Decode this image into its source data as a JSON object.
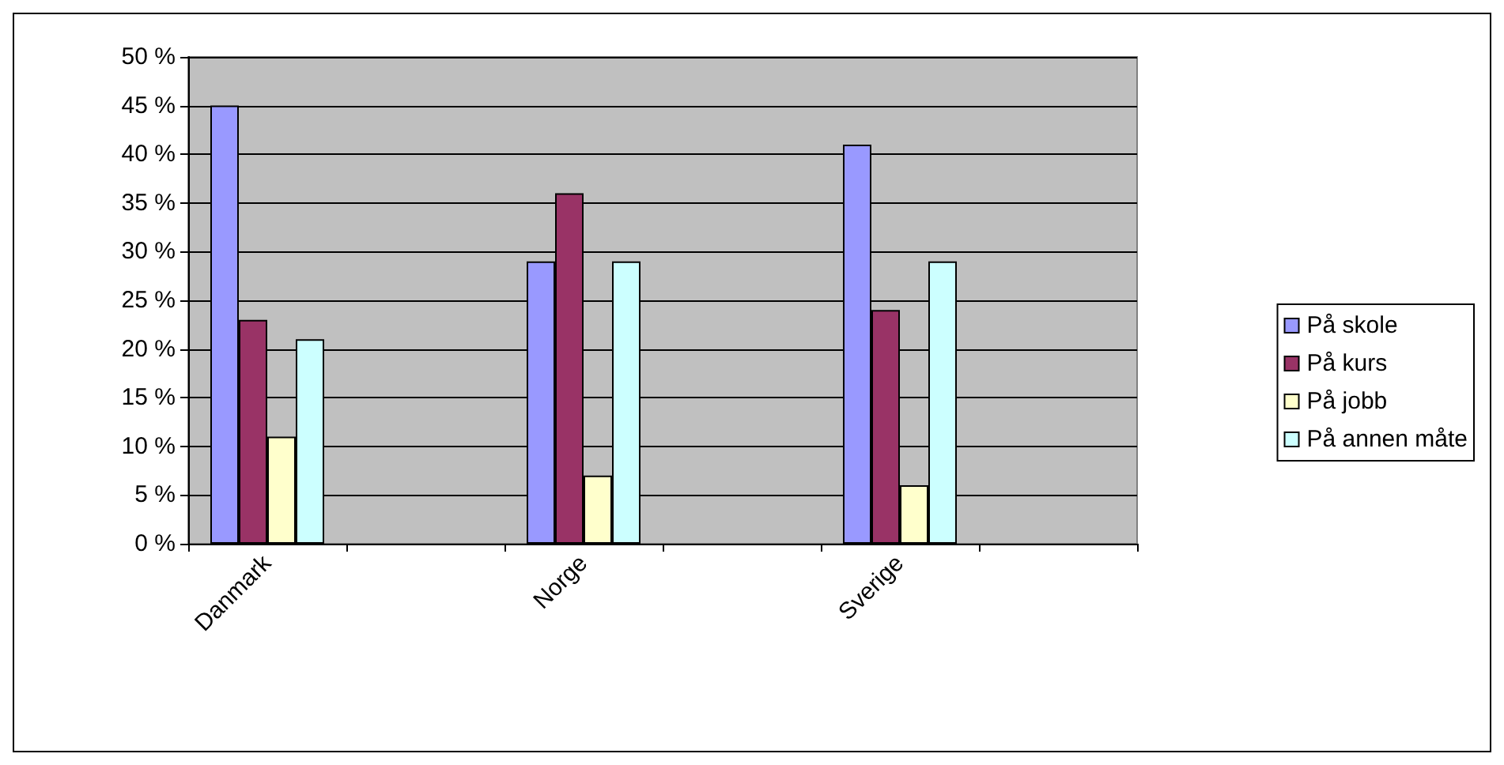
{
  "chart_data": {
    "type": "bar",
    "categories": [
      "Danmark",
      null,
      "Norge",
      null,
      "Sverige",
      null
    ],
    "series": [
      {
        "name": "På skole",
        "color": "#9999ff",
        "values": [
          45,
          null,
          29,
          null,
          41,
          null
        ]
      },
      {
        "name": "På kurs",
        "color": "#993366",
        "values": [
          23,
          null,
          36,
          null,
          24,
          null
        ]
      },
      {
        "name": "På jobb",
        "color": "#ffffcc",
        "values": [
          11,
          null,
          7,
          null,
          6,
          null
        ]
      },
      {
        "name": "På annen måte",
        "color": "#ccffff",
        "values": [
          21,
          null,
          29,
          null,
          29,
          null
        ]
      }
    ],
    "ylim": [
      0,
      50
    ],
    "yticks": [
      {
        "value": 0,
        "label": "0 %"
      },
      {
        "value": 5,
        "label": "5 %"
      },
      {
        "value": 10,
        "label": "10 %"
      },
      {
        "value": 15,
        "label": "15 %"
      },
      {
        "value": 20,
        "label": "20 %"
      },
      {
        "value": 25,
        "label": "25 %"
      },
      {
        "value": 30,
        "label": "30 %"
      },
      {
        "value": 35,
        "label": "35 %"
      },
      {
        "value": 40,
        "label": "40 %"
      },
      {
        "value": 45,
        "label": "45 %"
      },
      {
        "value": 50,
        "label": "50 %"
      }
    ],
    "grid": "y",
    "legend": "right"
  }
}
